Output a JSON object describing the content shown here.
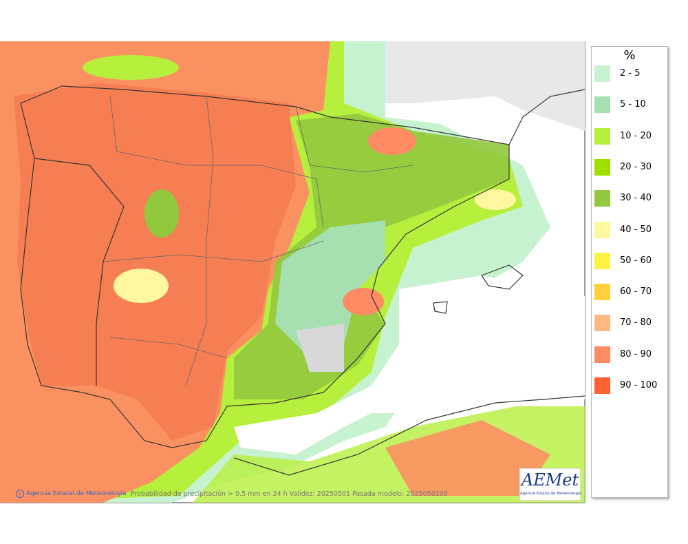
{
  "legend": {
    "title": "%",
    "items": [
      {
        "label": "2 - 5",
        "color": "#c6f2cf"
      },
      {
        "label": "5 - 10",
        "color": "#a6dfb0"
      },
      {
        "label": "10 - 20",
        "color": "#b6ef3c"
      },
      {
        "label": "20 - 30",
        "color": "#9fdf00"
      },
      {
        "label": "30 - 40",
        "color": "#92c83e"
      },
      {
        "label": "40 - 50",
        "color": "#fff7a0"
      },
      {
        "label": "50 - 60",
        "color": "#fff044"
      },
      {
        "label": "60 - 70",
        "color": "#ffd03e"
      },
      {
        "label": "70 - 80",
        "color": "#ffb880"
      },
      {
        "label": "80 - 90",
        "color": "#ff8b62"
      },
      {
        "label": "90 - 100",
        "color": "#ff6232"
      }
    ]
  },
  "footer": {
    "credit": "Agencia Estatal de Meteorología",
    "caption": "Probabilidad de precipitación > 0.5 mm en 24 h Validez: 20250501 Pasada modelo: 2025050100"
  },
  "logo": {
    "name": "AEMet",
    "subtitle": "Agencia Estatal de Meteorología"
  }
}
